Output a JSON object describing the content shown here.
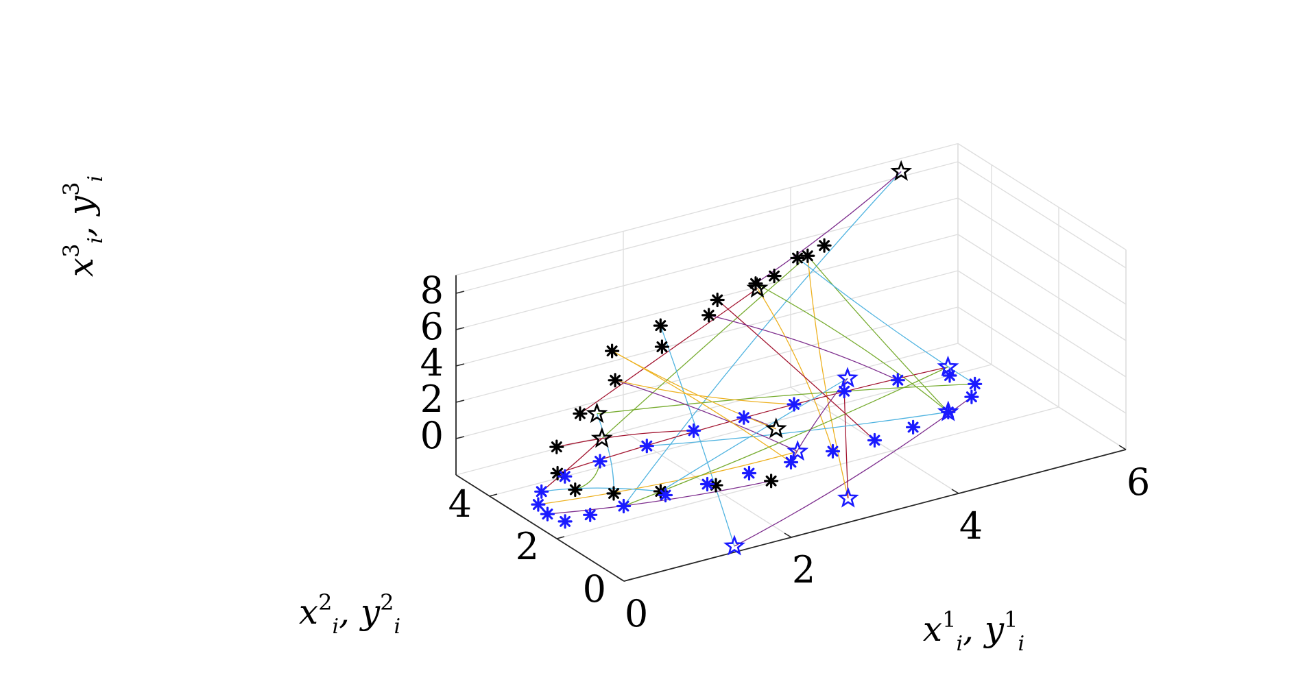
{
  "chart_data": {
    "type": "line3d",
    "title": "",
    "xlabel": {
      "base": "x",
      "sup": "1",
      "sub": "i",
      "sep": ",",
      "base2": "y",
      "sup2": "1",
      "sub2": "i"
    },
    "ylabel": {
      "base": "x",
      "sup": "2",
      "sub": "i",
      "sep": ",",
      "base2": "y",
      "sup2": "2",
      "sub2": "i"
    },
    "zlabel": {
      "base": "x",
      "sup": "3",
      "sub": "i",
      "sep": ",",
      "base2": "y",
      "sup2": "3",
      "sub2": "i"
    },
    "xlim": [
      0,
      6
    ],
    "ylim": [
      0,
      5
    ],
    "zlim": [
      -2,
      9
    ],
    "xticks": [
      "0",
      "2",
      "4",
      "6"
    ],
    "yticks": [
      "0",
      "2",
      "4"
    ],
    "zticks": [
      "0",
      "2",
      "4",
      "6",
      "8"
    ],
    "grid": true,
    "colors": {
      "grid": "#dedede",
      "axis": "#262626",
      "target_upper": "#000000",
      "target_lower": "#1a1aff",
      "traj": [
        "#4fb3e0",
        "#7e2f8e",
        "#edb120",
        "#a2142f",
        "#77ac30"
      ]
    },
    "series": [
      {
        "marker": "asterisk",
        "color": "#000000",
        "points": [
          [
            0.5,
            1.6,
            8.2
          ],
          [
            1.2,
            1.9,
            8.4
          ],
          [
            2.0,
            2.2,
            8.5
          ],
          [
            2.8,
            2.5,
            8.5
          ],
          [
            3.4,
            3.0,
            8.3
          ],
          [
            3.8,
            3.5,
            7.8
          ],
          [
            3.6,
            3.8,
            7.0
          ],
          [
            3.1,
            3.8,
            6.2
          ],
          [
            2.5,
            3.7,
            5.3
          ],
          [
            1.9,
            3.6,
            4.4
          ],
          [
            1.3,
            3.5,
            3.4
          ],
          [
            0.8,
            3.3,
            2.4
          ],
          [
            0.4,
            3.0,
            1.4
          ],
          [
            0.25,
            2.6,
            0.6
          ],
          [
            0.3,
            2.2,
            0.1
          ],
          [
            0.6,
            1.8,
            0.0
          ],
          [
            1.0,
            1.4,
            0.1
          ],
          [
            1.5,
            1.0,
            0.3
          ],
          [
            2.0,
            0.6,
            0.4
          ]
        ]
      },
      {
        "marker": "asterisk",
        "color": "#1a1aff",
        "points": [
          [
            0.3,
            2.5,
            -2
          ],
          [
            0.6,
            2.5,
            -2
          ],
          [
            1.0,
            2.5,
            -2
          ],
          [
            1.5,
            2.5,
            -2
          ],
          [
            2.0,
            2.5,
            -2
          ],
          [
            2.5,
            2.5,
            -2
          ],
          [
            3.0,
            2.5,
            -2
          ],
          [
            3.5,
            2.5,
            -2
          ],
          [
            4.0,
            2.5,
            -2
          ],
          [
            4.5,
            2.6,
            -2
          ],
          [
            5.0,
            2.8,
            -2
          ],
          [
            5.4,
            3.1,
            -2
          ],
          [
            5.6,
            3.5,
            -2
          ],
          [
            5.5,
            4.0,
            -2
          ],
          [
            5.0,
            4.3,
            -2
          ],
          [
            4.4,
            4.4,
            -2
          ],
          [
            3.8,
            4.4,
            -2
          ],
          [
            3.2,
            4.4,
            -2
          ],
          [
            2.6,
            4.4,
            -2
          ],
          [
            2.0,
            4.3,
            -2
          ],
          [
            1.4,
            4.2,
            -2
          ],
          [
            0.9,
            4.0,
            -2
          ],
          [
            0.5,
            3.7,
            -2
          ],
          [
            0.3,
            3.3,
            -2
          ],
          [
            0.25,
            2.9,
            -2
          ]
        ]
      },
      {
        "marker": "star",
        "color": "#000000",
        "points": [
          [
            5.0,
            4.2,
            9.6
          ],
          [
            3.0,
            3.5,
            6.4
          ],
          [
            0.6,
            2.3,
            3.8
          ],
          [
            2.3,
            1.2,
            2.2
          ],
          [
            0.7,
            2.4,
            2.2
          ]
        ]
      },
      {
        "marker": "star",
        "color": "#1a1aff",
        "points": [
          [
            1.4,
            0.2,
            -2
          ],
          [
            3.0,
            0.8,
            -2
          ],
          [
            5.0,
            2.8,
            -2
          ],
          [
            3.2,
            2.8,
            -2
          ],
          [
            5.6,
            4.3,
            -2
          ],
          [
            4.6,
            4.8,
            -2
          ]
        ]
      }
    ]
  }
}
